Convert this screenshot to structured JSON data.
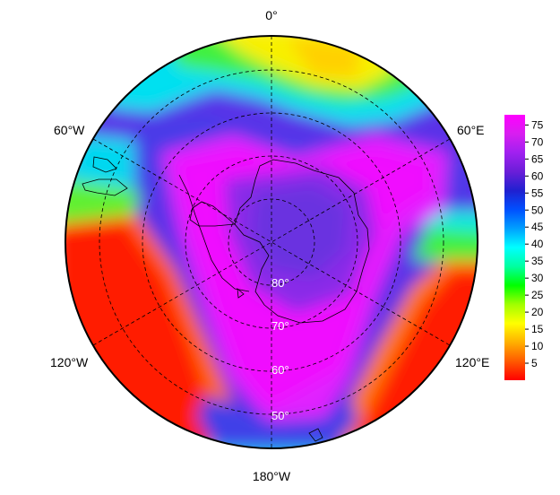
{
  "map": {
    "projection": "south-polar-stereographic",
    "longitude_labels": {
      "top": "0°",
      "upper_left": "60°W",
      "upper_right": "60°E",
      "lower_left": "120°W",
      "lower_right": "120°E",
      "bottom": "180°W"
    },
    "latitude_labels": [
      "80°",
      "70°",
      "60°",
      "50°"
    ]
  },
  "colorbar": {
    "ticks": [
      "75",
      "70",
      "65",
      "60",
      "55",
      "50",
      "45",
      "40",
      "35",
      "30",
      "25",
      "20",
      "15",
      "10",
      "5"
    ],
    "min": 0,
    "max": 78,
    "colors": [
      "#ff0000",
      "#ff5a00",
      "#ffb000",
      "#ffff00",
      "#a0ff00",
      "#00ff00",
      "#00ffa0",
      "#00ffff",
      "#00a0ff",
      "#0050ff",
      "#2020d0",
      "#6a1ed8",
      "#a020f0",
      "#d81ef0",
      "#ff00ff"
    ]
  },
  "colors": {
    "magenta": "#e81cff",
    "violet": "#9a2ff0",
    "blue": "#3050e8",
    "cyan": "#00e8f0",
    "green": "#30f050",
    "yellow": "#ffee00",
    "orange": "#ff8800",
    "red": "#ff1a00"
  }
}
